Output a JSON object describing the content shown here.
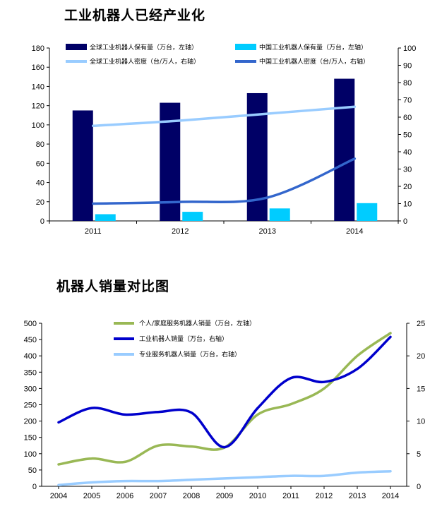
{
  "chart_data": [
    {
      "type": "bar",
      "title": "工业机器人已经产业化",
      "categories": [
        "2011",
        "2012",
        "2013",
        "2014"
      ],
      "series": [
        {
          "name": "全球工业机器人保有量（万台，左轴）",
          "kind": "bar",
          "axis": "left",
          "color": "#000066",
          "values": [
            115,
            123,
            133,
            148
          ]
        },
        {
          "name": "中国工业机器人保有量（万台，左轴）",
          "kind": "bar",
          "axis": "left",
          "color": "#00ccff",
          "values": [
            7,
            9.5,
            13,
            18.5
          ]
        },
        {
          "name": "全球工业机器人密度（台/万人，右轴）",
          "kind": "line",
          "axis": "right",
          "color": "#99ccff",
          "values": [
            55,
            58,
            62,
            66
          ]
        },
        {
          "name": "中国工业机器人密度（台/万人，右轴）",
          "kind": "line",
          "axis": "right",
          "color": "#3366cc",
          "values": [
            10,
            11,
            13.5,
            36
          ]
        }
      ],
      "ylim_left": [
        0,
        180
      ],
      "yticks_left": [
        "0",
        "20",
        "40",
        "60",
        "80",
        "100",
        "120",
        "140",
        "160",
        "180"
      ],
      "ylim_right": [
        0,
        100
      ],
      "yticks_right": [
        "0",
        "10",
        "20",
        "30",
        "40",
        "50",
        "60",
        "70",
        "80",
        "90",
        "100"
      ],
      "legend": "top"
    },
    {
      "type": "line",
      "title": "机器人销量对比图",
      "categories": [
        "2004",
        "2005",
        "2006",
        "2007",
        "2008",
        "2009",
        "2010",
        "2011",
        "2012",
        "2013",
        "2014"
      ],
      "series": [
        {
          "name": "个人/家庭服务机器人销量（万台，左轴）",
          "axis": "left",
          "color": "#99b855",
          "values": [
            67,
            85,
            75,
            125,
            122,
            119,
            220,
            252,
            300,
            400,
            470
          ]
        },
        {
          "name": "工业机器人销量（万台，右轴）",
          "axis": "right",
          "color": "#0000cc",
          "values": [
            9.8,
            12,
            11,
            11.4,
            11.3,
            6,
            12,
            16.6,
            16,
            18,
            22.9
          ]
        },
        {
          "name": "专业服务机器人销量（万台，右轴）",
          "axis": "right",
          "color": "#99ccff",
          "values": [
            0.2,
            0.6,
            0.8,
            0.8,
            1,
            1.2,
            1.4,
            1.6,
            1.6,
            2.1,
            2.3
          ]
        }
      ],
      "ylim_left": [
        0,
        500
      ],
      "yticks_left": [
        "0",
        "50",
        "100",
        "150",
        "200",
        "250",
        "300",
        "350",
        "400",
        "450",
        "500"
      ],
      "ylim_right": [
        0,
        25
      ],
      "yticks_right": [
        "0",
        "5",
        "10",
        "15",
        "20",
        "25"
      ],
      "legend": "top-left"
    }
  ]
}
